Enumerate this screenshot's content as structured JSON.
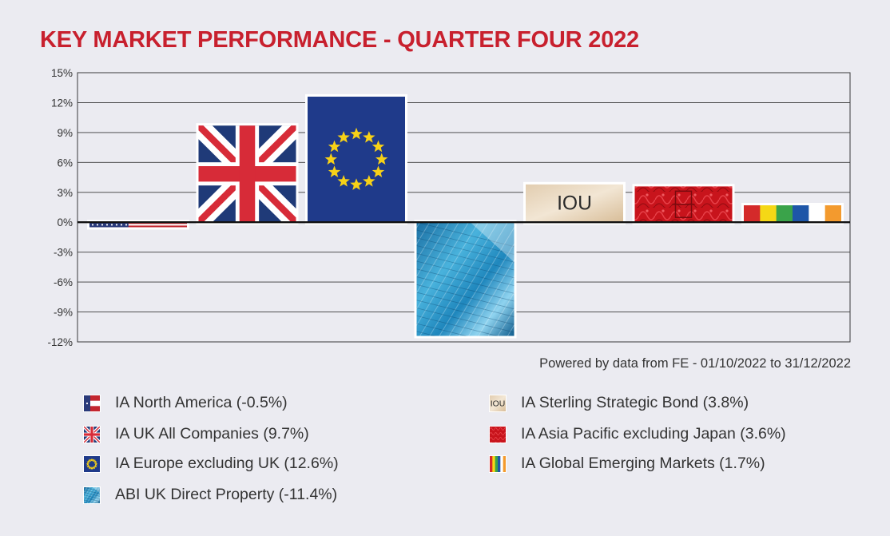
{
  "chart_data": {
    "type": "bar",
    "title": "KEY MARKET PERFORMANCE - QUARTER FOUR 2022",
    "source_note": "Powered by data from FE - 01/10/2022 to 31/12/2022",
    "categories": [
      "IA North America",
      "IA UK All Companies",
      "IA Europe excluding UK",
      "ABI UK Direct Property",
      "IA Sterling Strategic Bond",
      "IA Asia Pacific excluding Japan",
      "IA Global Emerging Markets"
    ],
    "values": [
      -0.5,
      9.7,
      12.6,
      -11.4,
      3.8,
      3.6,
      1.7
    ],
    "bar_icons": [
      "us-flag",
      "uk-flag",
      "eu-flag",
      "glass-building",
      "iou-note",
      "red-pattern",
      "rainbow-stripes"
    ],
    "bar_text": [
      "",
      "",
      "",
      "",
      "IOU",
      "",
      ""
    ],
    "ylim": [
      -12,
      15
    ],
    "yticks": [
      15,
      12,
      9,
      6,
      3,
      0,
      -3,
      -6,
      -9,
      -12
    ],
    "ytick_labels": [
      "15%",
      "12%",
      "9%",
      "6%",
      "3%",
      "0%",
      "-3%",
      "-6%",
      "-9%",
      "-12%"
    ],
    "xlabel": "",
    "ylabel": "",
    "grid": true,
    "legend_position": "bottom",
    "legend": [
      {
        "label": "IA North America (-0.5%)",
        "icon": "us-flag-icon"
      },
      {
        "label": "IA UK All Companies (9.7%)",
        "icon": "uk-flag-icon"
      },
      {
        "label": "IA Europe excluding UK (12.6%)",
        "icon": "eu-flag-icon"
      },
      {
        "label": "ABI UK Direct Property (-11.4%)",
        "icon": "glass-building-icon"
      },
      {
        "label": "IA Sterling Strategic Bond (3.8%)",
        "icon": "iou-note-icon",
        "icon_text": "IOU"
      },
      {
        "label": "IA Asia Pacific excluding Japan (3.6%)",
        "icon": "red-pattern-icon"
      },
      {
        "label": "IA Global Emerging Markets (1.7%)",
        "icon": "rainbow-stripes-icon"
      }
    ],
    "colors": {
      "title": "#c8202e",
      "background": "#ebebf1",
      "gridline": "#3a3a3a"
    }
  }
}
